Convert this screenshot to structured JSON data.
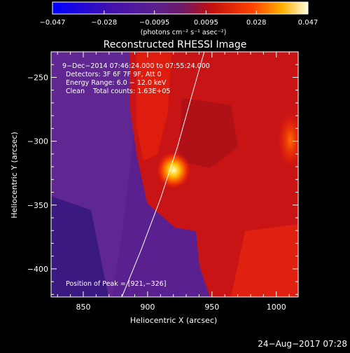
{
  "chart_data": {
    "type": "heatmap",
    "title": "Reconstructed RHESSI Image",
    "xlabel": "Heliocentric X (arcsec)",
    "ylabel": "Heliocentric Y (arcsec)",
    "xlim": [
      825,
      1017
    ],
    "ylim": [
      -422,
      -230
    ],
    "x_ticks": [
      850,
      900,
      950,
      1000
    ],
    "x_tick_labels": [
      "850",
      "900",
      "950",
      "1000"
    ],
    "y_ticks": [
      -250,
      -300,
      -350,
      -400
    ],
    "y_tick_labels": [
      "−250",
      "−300",
      "−350",
      "−400"
    ],
    "colorbar": {
      "min": -0.047,
      "max": 0.047,
      "ticks": [
        -0.047,
        -0.028,
        -0.0095,
        0.0095,
        0.028,
        0.047
      ],
      "tick_labels": [
        "−0.047",
        "−0.028",
        "−0.0095",
        "0.0095",
        "0.028",
        "0.047"
      ],
      "units_label": "(photons cm⁻² s⁻¹ asec⁻²)"
    },
    "annotations": [
      " 9−Dec−2014 07:46:24.000 to 07:55:24.000",
      "Detectors: 3F 6F 7F 9F, Att 0",
      "Energy Range: 6.0 − 12.0 keV",
      "Clean    Total counts: 1.63E+05"
    ],
    "peak_label": "Position of Peak = [921,−326]",
    "peak": [
      921,
      -326
    ],
    "limb_points": [
      [
        880,
        -422
      ],
      [
        895,
        -385
      ],
      [
        910,
        -345
      ],
      [
        923,
        -305
      ],
      [
        935,
        -262
      ],
      [
        944,
        -230
      ]
    ]
  },
  "footer_date": "24−Aug−2017 07:28",
  "colors": {
    "background": "#000000",
    "text": "#ffffff",
    "limb": "#ffffff"
  }
}
